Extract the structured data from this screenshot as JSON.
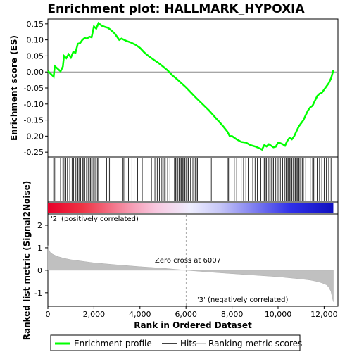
{
  "chart_data": {
    "type": "line",
    "title": "Enrichment plot: HALLMARK_HYPOXIA",
    "es_panel": {
      "ylabel": "Enrichment score (ES)",
      "ylim": [
        -0.265,
        0.165
      ],
      "yticks": [
        0.15,
        0.1,
        0.05,
        0.0,
        -0.05,
        -0.1,
        -0.15,
        -0.2,
        -0.25
      ],
      "ytick_labels": [
        "0.15",
        "0.10",
        "0.05",
        "0.00",
        "-0.05",
        "-0.10",
        "-0.15",
        "-0.20",
        "-0.25"
      ],
      "series": [
        {
          "name": "Enrichment profile",
          "color": "#00ff00",
          "x": [
            0,
            250,
            300,
            550,
            650,
            700,
            800,
            900,
            1000,
            1100,
            1200,
            1300,
            1400,
            1500,
            1600,
            1700,
            1800,
            1900,
            2000,
            2100,
            2200,
            2350,
            2500,
            2600,
            2700,
            2900,
            3100,
            3200,
            3400,
            3600,
            3800,
            4000,
            4200,
            4400,
            4600,
            4800,
            5000,
            5200,
            5400,
            5600,
            5800,
            6000,
            6200,
            6400,
            6600,
            6800,
            7000,
            7200,
            7400,
            7600,
            7800,
            7900,
            8000,
            8200,
            8400,
            8600,
            8800,
            9000,
            9200,
            9300,
            9400,
            9500,
            9600,
            9700,
            9800,
            9900,
            10000,
            10100,
            10200,
            10300,
            10400,
            10500,
            10600,
            10700,
            10800,
            10900,
            11000,
            11100,
            11200,
            11300,
            11400,
            11500,
            11600,
            11700,
            11800,
            11900,
            12000,
            12100,
            12200,
            12300,
            12400
          ],
          "y": [
            0.003,
            -0.015,
            0.018,
            0.002,
            0.017,
            0.05,
            0.043,
            0.055,
            0.045,
            0.062,
            0.06,
            0.088,
            0.09,
            0.1,
            0.106,
            0.104,
            0.11,
            0.108,
            0.142,
            0.135,
            0.152,
            0.144,
            0.14,
            0.138,
            0.133,
            0.12,
            0.1,
            0.104,
            0.097,
            0.092,
            0.085,
            0.075,
            0.06,
            0.048,
            0.038,
            0.028,
            0.017,
            0.005,
            -0.01,
            -0.022,
            -0.035,
            -0.048,
            -0.063,
            -0.078,
            -0.092,
            -0.106,
            -0.12,
            -0.136,
            -0.152,
            -0.168,
            -0.186,
            -0.2,
            -0.2,
            -0.21,
            -0.218,
            -0.22,
            -0.228,
            -0.232,
            -0.238,
            -0.242,
            -0.228,
            -0.232,
            -0.225,
            -0.23,
            -0.235,
            -0.233,
            -0.22,
            -0.222,
            -0.225,
            -0.23,
            -0.215,
            -0.205,
            -0.21,
            -0.2,
            -0.185,
            -0.17,
            -0.16,
            -0.15,
            -0.135,
            -0.12,
            -0.11,
            -0.105,
            -0.09,
            -0.075,
            -0.068,
            -0.065,
            -0.055,
            -0.045,
            -0.035,
            -0.02,
            0.005
          ]
        }
      ]
    },
    "hits_panel": {
      "name": "Hits",
      "hit_ranks": [
        250,
        300,
        550,
        650,
        700,
        780,
        850,
        950,
        1050,
        1120,
        1200,
        1260,
        1300,
        1350,
        1420,
        1480,
        1520,
        1560,
        1600,
        1680,
        1750,
        1800,
        1850,
        1900,
        1960,
        2050,
        2100,
        2150,
        2200,
        2400,
        2550,
        2620,
        2680,
        3250,
        3300,
        3500,
        3650,
        3750,
        3900,
        4100,
        4500,
        4650,
        4750,
        4850,
        4950,
        5000,
        5050,
        5100,
        5200,
        5300,
        5500,
        5550,
        5600,
        5650,
        5700,
        5750,
        5800,
        5850,
        5900,
        5950,
        6000,
        6050,
        6100,
        6200,
        6300,
        6350,
        6400,
        6450,
        6500,
        7100,
        7800,
        7850,
        7900,
        8000,
        8100,
        8200,
        8300,
        8400,
        8500,
        8600,
        8700,
        8900,
        9000,
        9100,
        9250,
        9350,
        9400,
        9450,
        9500,
        9600,
        9700,
        9750,
        9800,
        9900,
        10000,
        10100,
        10200,
        10300,
        10350,
        10400,
        10450,
        10500,
        10550,
        10600,
        10650,
        10700,
        10750,
        10800,
        10850,
        10900,
        10950,
        11000,
        11050,
        11100,
        11200,
        11300,
        11400,
        11500,
        11550,
        11600,
        11700,
        11800,
        11900,
        12000,
        12100,
        12200,
        12300
      ]
    },
    "ranking_bar": {
      "min_rank": 0,
      "max_rank": 12400,
      "zero_cross": 6007
    },
    "metric_panel": {
      "ylabel": "Ranked list metric (Signal2Noise)",
      "xlabel": "Rank in Ordered Dataset",
      "ylim": [
        -1.6,
        2.5
      ],
      "yticks": [
        2,
        1,
        0,
        -1
      ],
      "ytick_labels": [
        "2",
        "1",
        "0",
        "-1"
      ],
      "xlim": [
        0,
        12600
      ],
      "xticks": [
        0,
        2000,
        4000,
        6000,
        8000,
        10000,
        12000
      ],
      "xtick_labels": [
        "0",
        "2,000",
        "4,000",
        "6,000",
        "8,000",
        "10,000",
        "12,000"
      ],
      "metric_x": [
        0,
        50,
        100,
        200,
        400,
        700,
        1000,
        1500,
        2000,
        3000,
        4000,
        5000,
        6007,
        7000,
        8000,
        9000,
        10000,
        10500,
        11000,
        11400,
        11700,
        11900,
        12100,
        12200,
        12300,
        12350,
        12400
      ],
      "metric_y": [
        1.1,
        0.9,
        0.8,
        0.72,
        0.62,
        0.53,
        0.47,
        0.4,
        0.33,
        0.24,
        0.16,
        0.09,
        0.0,
        -0.08,
        -0.15,
        -0.22,
        -0.29,
        -0.34,
        -0.39,
        -0.44,
        -0.5,
        -0.56,
        -0.65,
        -0.75,
        -0.95,
        -1.2,
        -1.4
      ],
      "zero_cross_label": "Zero cross at 6007",
      "positive_label": "'2' (positively correlated)",
      "negative_label": "'3' (negatively correlated)"
    },
    "legend": {
      "items": [
        {
          "label": "Enrichment profile",
          "color": "#00ff00"
        },
        {
          "label": "Hits",
          "color": "#000000"
        },
        {
          "label": "Ranking metric scores",
          "color": "#c0c0c0"
        }
      ]
    },
    "colors": {
      "profile": "#00ff00",
      "positive_label": "#cc0000",
      "negative_label": "#0000cc",
      "metric_fill": "#c0c0c0"
    }
  }
}
